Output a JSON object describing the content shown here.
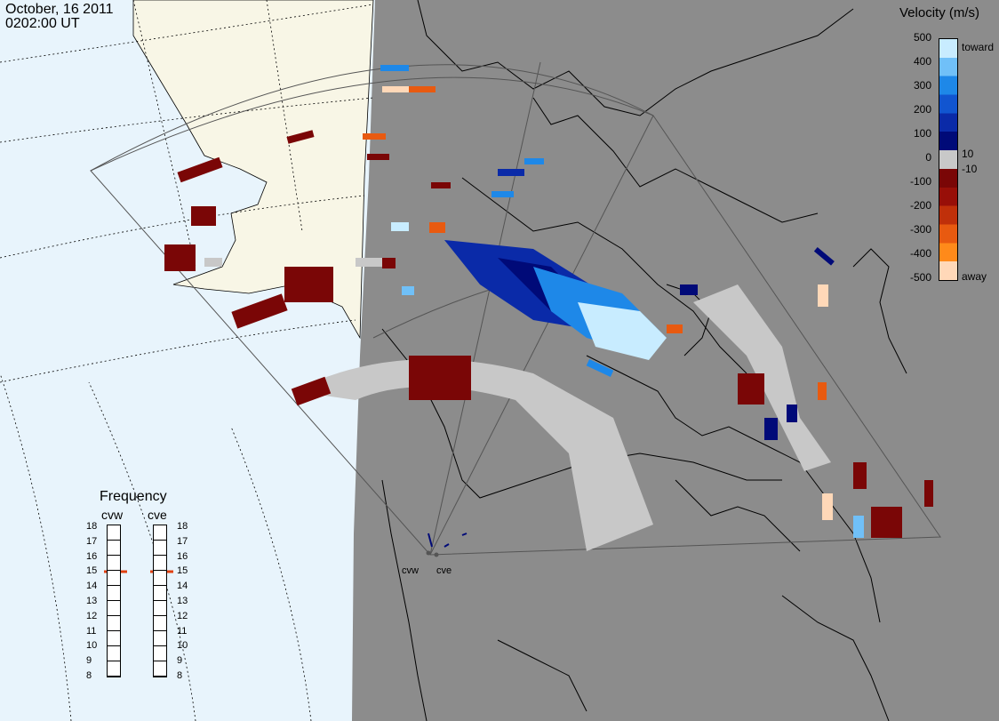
{
  "header": {
    "date": "October, 16 2011",
    "time": "0202:00 UT"
  },
  "colorbar": {
    "title": "Velocity (m/s)",
    "left_ticks": [
      "500",
      "400",
      "300",
      "200",
      "100",
      "0",
      "-100",
      "-200",
      "-300",
      "-400",
      "-500"
    ],
    "right_labels": {
      "top": "toward",
      "pos": "10",
      "neg": "-10",
      "bottom": "away"
    },
    "colors": [
      "#ffd8b8",
      "#ff8a1a",
      "#e85a10",
      "#c0300a",
      "#980f08",
      "#7a0606",
      "#c8c8c8",
      "#000a78",
      "#0a2aa8",
      "#1155d0",
      "#1e88e8",
      "#70c0f8",
      "#c8ecff"
    ]
  },
  "frequency": {
    "title": "Frequency",
    "radars": [
      {
        "name": "cvw",
        "value_mhz": 15
      },
      {
        "name": "cve",
        "value_mhz": 15
      }
    ],
    "scale": [
      "18",
      "17",
      "16",
      "15",
      "14",
      "13",
      "12",
      "11",
      "10",
      "9",
      "8"
    ]
  },
  "radars": [
    "cvw",
    "cve"
  ],
  "colors": {
    "ocean": "#e8f4fc",
    "land_day": "#f8f6e6",
    "night": "#8c8c8c",
    "ground_scatter": "#c8c8c8",
    "freq_marker": "#e04010"
  }
}
